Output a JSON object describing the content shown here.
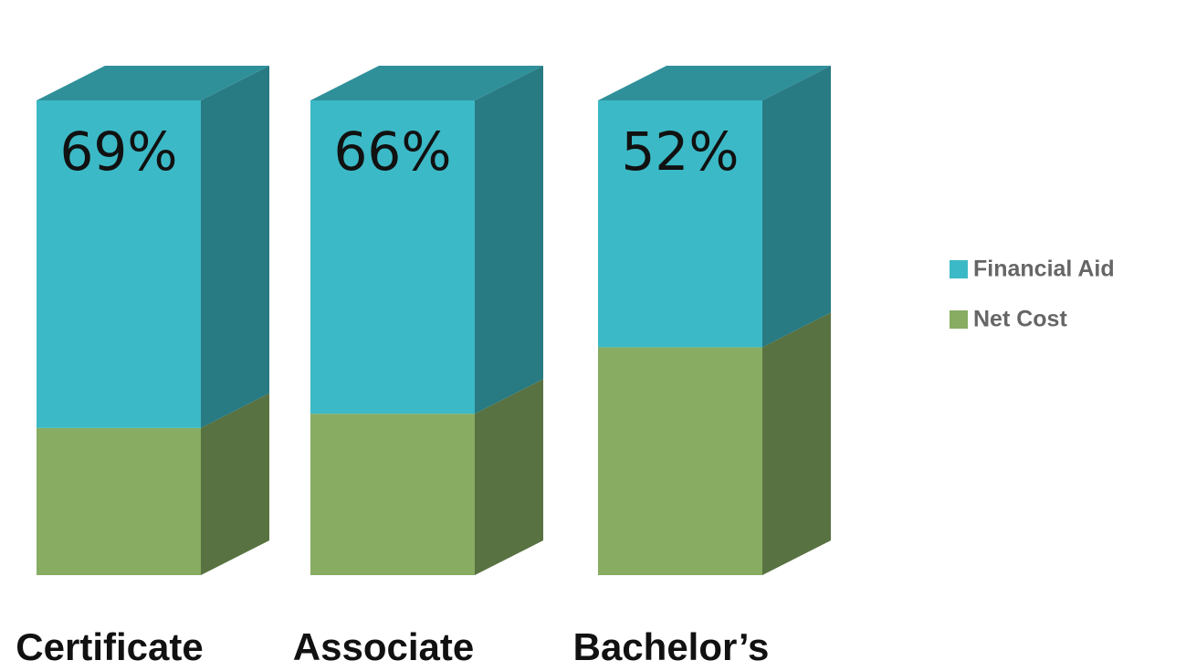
{
  "chart_data": {
    "type": "bar3d_stacked",
    "categories": [
      "Certificate",
      "Associate",
      "Bachelor’s"
    ],
    "series": [
      {
        "name": "Net Cost",
        "color": "#87ac62",
        "values": [
          31,
          34,
          48
        ]
      },
      {
        "name": "Financial Aid",
        "color": "#3cb9c6",
        "values": [
          69,
          66,
          52
        ],
        "value_labels": [
          "69%",
          "66%",
          "52%"
        ]
      }
    ],
    "ylim": [
      0,
      100
    ]
  }
}
